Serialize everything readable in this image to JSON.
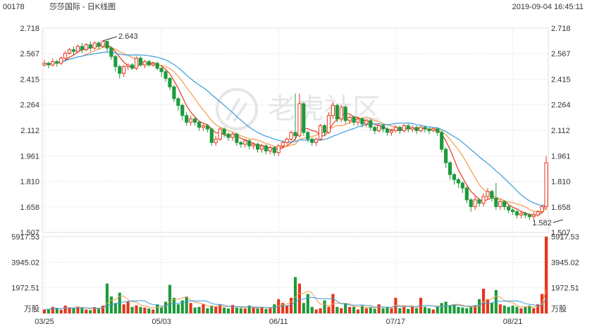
{
  "header": {
    "code": "00178",
    "name": "莎莎国际 - 日K线图",
    "datetime": "2019-09-04 16:45:11"
  },
  "watermark": "老虎社区",
  "colors": {
    "up": "#e8341c",
    "down": "#1c9b3c",
    "ma5": "#e8341c",
    "ma10": "#f29a4a",
    "ma20": "#3a9bdc",
    "grid": "#e5e5e5"
  },
  "chart_data": [
    {
      "type": "candlestick",
      "y_ticks": [
        "2.718",
        "2.567",
        "2.415",
        "2.264",
        "2.112",
        "1.961",
        "1.810",
        "1.658",
        "1.507"
      ],
      "y_tick_values": [
        2.718,
        2.567,
        2.415,
        2.264,
        2.112,
        1.961,
        1.81,
        1.658,
        1.507
      ],
      "ylim": [
        1.507,
        2.718
      ],
      "x_ticks": [
        {
          "label": "03/25",
          "index": 0
        },
        {
          "label": "05/03",
          "index": 28
        },
        {
          "label": "06/11",
          "index": 56
        },
        {
          "label": "07/17",
          "index": 84
        },
        {
          "label": "08/21",
          "index": 112
        }
      ],
      "annotations": [
        {
          "text": "2.643",
          "index": 14,
          "value": 2.643
        },
        {
          "text": "1.582",
          "index": 124,
          "value": 1.582
        }
      ],
      "lines": [
        "MA5",
        "MA10",
        "MA20"
      ],
      "candles": [
        [
          2.5,
          2.51,
          2.49,
          2.53
        ],
        [
          2.51,
          2.5,
          2.48,
          2.52
        ],
        [
          2.5,
          2.52,
          2.49,
          2.54
        ],
        [
          2.52,
          2.51,
          2.49,
          2.53
        ],
        [
          2.51,
          2.54,
          2.5,
          2.55
        ],
        [
          2.54,
          2.57,
          2.53,
          2.58
        ],
        [
          2.57,
          2.59,
          2.56,
          2.6
        ],
        [
          2.59,
          2.58,
          2.56,
          2.61
        ],
        [
          2.58,
          2.61,
          2.57,
          2.62
        ],
        [
          2.61,
          2.59,
          2.57,
          2.63
        ],
        [
          2.59,
          2.62,
          2.58,
          2.63
        ],
        [
          2.62,
          2.6,
          2.58,
          2.64
        ],
        [
          2.6,
          2.63,
          2.59,
          2.64
        ],
        [
          2.63,
          2.61,
          2.59,
          2.64
        ],
        [
          2.61,
          2.64,
          2.6,
          2.643
        ],
        [
          2.64,
          2.6,
          2.58,
          2.643
        ],
        [
          2.6,
          2.55,
          2.53,
          2.61
        ],
        [
          2.55,
          2.49,
          2.46,
          2.56
        ],
        [
          2.49,
          2.45,
          2.42,
          2.5
        ],
        [
          2.45,
          2.49,
          2.43,
          2.5
        ],
        [
          2.49,
          2.5,
          2.47,
          2.51
        ],
        [
          2.5,
          2.48,
          2.47,
          2.51
        ],
        [
          2.48,
          2.54,
          2.47,
          2.55
        ],
        [
          2.54,
          2.5,
          2.49,
          2.55
        ],
        [
          2.5,
          2.52,
          2.48,
          2.53
        ],
        [
          2.52,
          2.5,
          2.49,
          2.53
        ],
        [
          2.5,
          2.51,
          2.49,
          2.52
        ],
        [
          2.51,
          2.48,
          2.47,
          2.52
        ],
        [
          2.48,
          2.46,
          2.43,
          2.49
        ],
        [
          2.46,
          2.42,
          2.4,
          2.47
        ],
        [
          2.42,
          2.37,
          2.35,
          2.43
        ],
        [
          2.37,
          2.3,
          2.28,
          2.38
        ],
        [
          2.3,
          2.26,
          2.23,
          2.31
        ],
        [
          2.26,
          2.2,
          2.17,
          2.27
        ],
        [
          2.2,
          2.16,
          2.14,
          2.22
        ],
        [
          2.16,
          2.18,
          2.14,
          2.2
        ],
        [
          2.18,
          2.16,
          2.14,
          2.19
        ],
        [
          2.16,
          2.13,
          2.11,
          2.17
        ],
        [
          2.13,
          2.14,
          2.11,
          2.15
        ],
        [
          2.14,
          2.12,
          2.1,
          2.15
        ],
        [
          2.12,
          2.04,
          2.02,
          2.13
        ],
        [
          2.04,
          2.06,
          2.02,
          2.08
        ],
        [
          2.06,
          2.12,
          2.05,
          2.13
        ],
        [
          2.12,
          2.09,
          2.07,
          2.13
        ],
        [
          2.09,
          2.07,
          2.05,
          2.1
        ],
        [
          2.07,
          2.09,
          2.05,
          2.1
        ],
        [
          2.09,
          2.04,
          2.02,
          2.1
        ],
        [
          2.04,
          2.03,
          2.01,
          2.05
        ],
        [
          2.03,
          2.05,
          2.01,
          2.06
        ],
        [
          2.05,
          2.02,
          2.0,
          2.06
        ],
        [
          2.02,
          2.03,
          2.0,
          2.04
        ],
        [
          2.03,
          2.0,
          1.98,
          2.04
        ],
        [
          2.0,
          2.02,
          1.98,
          2.03
        ],
        [
          2.02,
          1.99,
          1.97,
          2.03
        ],
        [
          1.99,
          2.01,
          1.97,
          2.02
        ],
        [
          2.01,
          1.98,
          1.96,
          2.02
        ],
        [
          1.98,
          2.02,
          1.96,
          2.03
        ],
        [
          2.02,
          2.04,
          2.01,
          2.05
        ],
        [
          2.04,
          2.06,
          2.03,
          2.07
        ],
        [
          2.06,
          2.1,
          2.05,
          2.11
        ],
        [
          2.1,
          2.08,
          2.05,
          2.33
        ],
        [
          2.08,
          2.27,
          2.07,
          2.33
        ],
        [
          2.27,
          2.1,
          2.08,
          2.28
        ],
        [
          2.1,
          2.06,
          2.04,
          2.11
        ],
        [
          2.06,
          2.04,
          2.02,
          2.07
        ],
        [
          2.04,
          2.06,
          2.02,
          2.07
        ],
        [
          2.06,
          2.14,
          2.05,
          2.15
        ],
        [
          2.14,
          2.1,
          2.08,
          2.15
        ],
        [
          2.1,
          2.2,
          2.09,
          2.22
        ],
        [
          2.2,
          2.26,
          2.18,
          2.28
        ],
        [
          2.26,
          2.18,
          2.16,
          2.27
        ],
        [
          2.18,
          2.25,
          2.16,
          2.26
        ],
        [
          2.25,
          2.17,
          2.15,
          2.26
        ],
        [
          2.17,
          2.19,
          2.15,
          2.2
        ],
        [
          2.19,
          2.16,
          2.14,
          2.2
        ],
        [
          2.16,
          2.18,
          2.14,
          2.19
        ],
        [
          2.18,
          2.15,
          2.13,
          2.19
        ],
        [
          2.15,
          2.17,
          2.13,
          2.18
        ],
        [
          2.17,
          2.13,
          2.11,
          2.18
        ],
        [
          2.13,
          2.11,
          2.09,
          2.14
        ],
        [
          2.11,
          2.14,
          2.1,
          2.15
        ],
        [
          2.14,
          2.12,
          2.1,
          2.15
        ],
        [
          2.12,
          2.1,
          2.08,
          2.13
        ],
        [
          2.1,
          2.11,
          2.08,
          2.12
        ],
        [
          2.11,
          2.13,
          2.1,
          2.14
        ],
        [
          2.13,
          2.11,
          2.09,
          2.14
        ],
        [
          2.11,
          2.14,
          2.1,
          2.15
        ],
        [
          2.14,
          2.12,
          2.1,
          2.15
        ],
        [
          2.12,
          2.13,
          2.1,
          2.14
        ],
        [
          2.13,
          2.11,
          2.09,
          2.14
        ],
        [
          2.11,
          2.13,
          2.1,
          2.14
        ],
        [
          2.13,
          2.12,
          2.1,
          2.14
        ],
        [
          2.12,
          2.11,
          2.09,
          2.13
        ],
        [
          2.11,
          2.12,
          2.1,
          2.13
        ],
        [
          2.12,
          2.1,
          2.08,
          2.13
        ],
        [
          2.1,
          2.0,
          1.98,
          2.11
        ],
        [
          2.0,
          1.92,
          1.89,
          2.01
        ],
        [
          1.92,
          1.85,
          1.82,
          1.93
        ],
        [
          1.85,
          1.82,
          1.79,
          1.86
        ],
        [
          1.82,
          1.8,
          1.77,
          1.83
        ],
        [
          1.8,
          1.77,
          1.74,
          1.81
        ],
        [
          1.77,
          1.7,
          1.68,
          1.78
        ],
        [
          1.7,
          1.66,
          1.63,
          1.71
        ],
        [
          1.66,
          1.7,
          1.64,
          1.72
        ],
        [
          1.7,
          1.68,
          1.66,
          1.71
        ],
        [
          1.68,
          1.72,
          1.66,
          1.74
        ],
        [
          1.72,
          1.75,
          1.7,
          1.77
        ],
        [
          1.75,
          1.71,
          1.69,
          1.76
        ],
        [
          1.71,
          1.66,
          1.64,
          1.8
        ],
        [
          1.66,
          1.69,
          1.64,
          1.7
        ],
        [
          1.69,
          1.66,
          1.64,
          1.7
        ],
        [
          1.66,
          1.64,
          1.62,
          1.67
        ],
        [
          1.64,
          1.63,
          1.61,
          1.65
        ],
        [
          1.63,
          1.61,
          1.59,
          1.64
        ],
        [
          1.61,
          1.62,
          1.59,
          1.63
        ],
        [
          1.62,
          1.61,
          1.59,
          1.63
        ],
        [
          1.61,
          1.6,
          1.58,
          1.62
        ],
        [
          1.6,
          1.61,
          1.58,
          1.63
        ],
        [
          1.61,
          1.63,
          1.6,
          1.64
        ],
        [
          1.63,
          1.66,
          1.62,
          1.67
        ],
        [
          1.66,
          1.92,
          1.64,
          1.96
        ]
      ]
    },
    {
      "type": "bar",
      "title": "",
      "ylabel": "万股",
      "y_ticks": [
        "5917.53",
        "3945.02",
        "1972.51"
      ],
      "y_tick_values": [
        5917.53,
        3945.02,
        1972.51
      ],
      "ylim": [
        0,
        5917.53
      ],
      "volumes": [
        300,
        320,
        500,
        420,
        280,
        600,
        450,
        380,
        520,
        400,
        300,
        250,
        480,
        350,
        600,
        2300,
        1300,
        800,
        1600,
        700,
        900,
        500,
        620,
        500,
        450,
        380,
        300,
        700,
        450,
        900,
        2200,
        1200,
        700,
        1000,
        1300,
        800,
        450,
        500,
        700,
        400,
        600,
        500,
        700,
        450,
        380,
        650,
        450,
        400,
        380,
        600,
        450,
        400,
        500,
        350,
        400,
        700,
        1100,
        800,
        600,
        1200,
        2800,
        2300,
        800,
        1500,
        500,
        300,
        400,
        1000,
        500,
        1500,
        500,
        400,
        800,
        500,
        500,
        300,
        600,
        400,
        500,
        350,
        700,
        400,
        500,
        400,
        1200,
        400,
        500,
        350,
        500,
        400,
        1200,
        500,
        400,
        300,
        500,
        800,
        900,
        600,
        700,
        500,
        450,
        400,
        500,
        600,
        1100,
        1900,
        1100,
        800,
        1800,
        700,
        600,
        500,
        600,
        500,
        400,
        500,
        600,
        400,
        700,
        1500,
        5917
      ]
    }
  ]
}
